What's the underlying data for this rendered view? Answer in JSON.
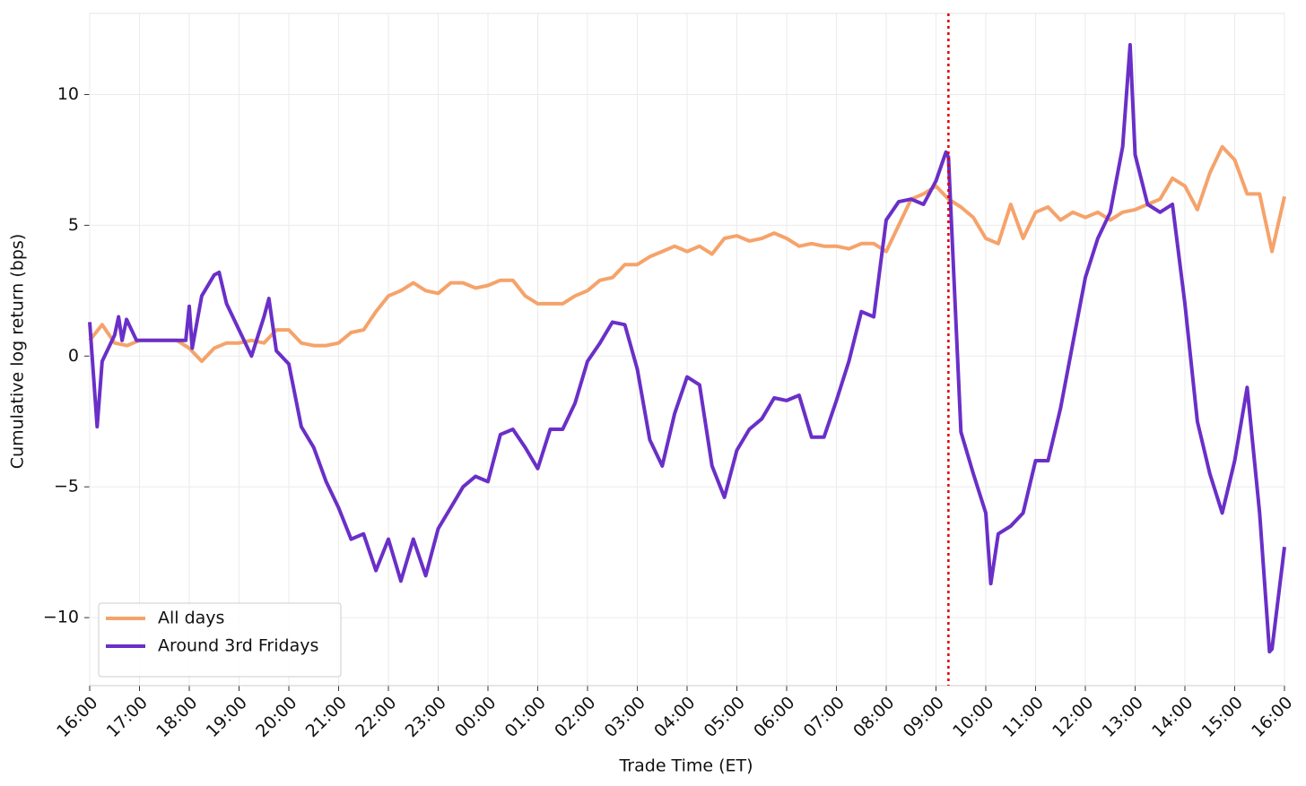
{
  "chart_data": {
    "type": "line",
    "xlabel": "Trade Time (ET)",
    "ylabel": "Cumulative log return (bps)",
    "xlim": [
      0,
      24
    ],
    "ylim": [
      -12.6,
      13.1
    ],
    "grid": true,
    "legend": "lower left",
    "vline": {
      "x": 17.25,
      "color": "#e00000"
    },
    "xticks": [
      {
        "value": 0,
        "label": "16:00"
      },
      {
        "value": 1,
        "label": "17:00"
      },
      {
        "value": 2,
        "label": "18:00"
      },
      {
        "value": 3,
        "label": "19:00"
      },
      {
        "value": 4,
        "label": "20:00"
      },
      {
        "value": 5,
        "label": "21:00"
      },
      {
        "value": 6,
        "label": "22:00"
      },
      {
        "value": 7,
        "label": "23:00"
      },
      {
        "value": 8,
        "label": "00:00"
      },
      {
        "value": 9,
        "label": "01:00"
      },
      {
        "value": 10,
        "label": "02:00"
      },
      {
        "value": 11,
        "label": "03:00"
      },
      {
        "value": 12,
        "label": "04:00"
      },
      {
        "value": 13,
        "label": "05:00"
      },
      {
        "value": 14,
        "label": "06:00"
      },
      {
        "value": 15,
        "label": "07:00"
      },
      {
        "value": 16,
        "label": "08:00"
      },
      {
        "value": 17,
        "label": "09:00"
      },
      {
        "value": 18,
        "label": "10:00"
      },
      {
        "value": 19,
        "label": "11:00"
      },
      {
        "value": 20,
        "label": "12:00"
      },
      {
        "value": 21,
        "label": "13:00"
      },
      {
        "value": 22,
        "label": "14:00"
      },
      {
        "value": 23,
        "label": "15:00"
      },
      {
        "value": 24,
        "label": "16:00"
      }
    ],
    "yticks": [
      {
        "value": -10,
        "label": "−10"
      },
      {
        "value": -5,
        "label": "−5"
      },
      0,
      5,
      10
    ],
    "series": [
      {
        "name": "All days",
        "color": "#f5a36b",
        "x": [
          0,
          0.25,
          0.5,
          0.75,
          1,
          1.25,
          1.5,
          1.75,
          2,
          2.25,
          2.5,
          2.75,
          3,
          3.25,
          3.5,
          3.75,
          4,
          4.25,
          4.5,
          4.75,
          5,
          5.25,
          5.5,
          5.75,
          6,
          6.25,
          6.5,
          6.75,
          7,
          7.25,
          7.5,
          7.75,
          8,
          8.25,
          8.5,
          8.75,
          9,
          9.25,
          9.5,
          9.75,
          10,
          10.25,
          10.5,
          10.75,
          11,
          11.25,
          11.5,
          11.75,
          12,
          12.25,
          12.5,
          12.75,
          13,
          13.25,
          13.5,
          13.75,
          14,
          14.25,
          14.5,
          14.75,
          15,
          15.25,
          15.5,
          15.75,
          16,
          16.25,
          16.5,
          16.75,
          17,
          17.25,
          17.5,
          17.75,
          18,
          18.25,
          18.5,
          18.75,
          19,
          19.25,
          19.5,
          19.75,
          20,
          20.25,
          20.5,
          20.75,
          21,
          21.25,
          21.5,
          21.75,
          22,
          22.25,
          22.5,
          22.75,
          23,
          23.25,
          23.5,
          23.75,
          24
        ],
        "values": [
          0.6,
          1.2,
          0.5,
          0.4,
          0.6,
          0.6,
          0.6,
          0.6,
          0.3,
          -0.2,
          0.3,
          0.5,
          0.5,
          0.6,
          0.5,
          1.0,
          1.0,
          0.5,
          0.4,
          0.4,
          0.5,
          0.9,
          1.0,
          1.7,
          2.3,
          2.5,
          2.8,
          2.5,
          2.4,
          2.8,
          2.8,
          2.6,
          2.7,
          2.9,
          2.9,
          2.3,
          2.0,
          2.0,
          2.0,
          2.3,
          2.5,
          2.9,
          3.0,
          3.5,
          3.5,
          3.8,
          4.0,
          4.2,
          4.0,
          4.2,
          3.9,
          4.5,
          4.6,
          4.4,
          4.5,
          4.7,
          4.5,
          4.2,
          4.3,
          4.2,
          4.2,
          4.1,
          4.3,
          4.3,
          4.0,
          5.0,
          6.0,
          6.2,
          6.5,
          6.0,
          5.7,
          5.3,
          4.5,
          4.3,
          5.8,
          4.5,
          5.5,
          5.7,
          5.2,
          5.5,
          5.3,
          5.5,
          5.2,
          5.5,
          5.6,
          5.8,
          6.0,
          6.8,
          6.5,
          5.6,
          7.0,
          8.0,
          7.5,
          6.2,
          6.2,
          4.0,
          6.1
        ]
      },
      {
        "name": "Around 3rd Fridays",
        "color": "#6a2fc8",
        "x": [
          0,
          0.15,
          0.25,
          0.5,
          0.58,
          0.65,
          0.74,
          0.94,
          1,
          1.25,
          1.5,
          1.75,
          1.93,
          2,
          2.06,
          2.25,
          2.5,
          2.6,
          2.75,
          3,
          3.25,
          3.5,
          3.6,
          3.75,
          4,
          4.25,
          4.5,
          4.75,
          5,
          5.25,
          5.5,
          5.75,
          6,
          6.25,
          6.5,
          6.75,
          7,
          7.25,
          7.5,
          7.75,
          8,
          8.25,
          8.5,
          8.75,
          9,
          9.25,
          9.5,
          9.75,
          10,
          10.25,
          10.5,
          10.75,
          11,
          11.25,
          11.5,
          11.75,
          12,
          12.25,
          12.5,
          12.75,
          13,
          13.25,
          13.5,
          13.75,
          14,
          14.25,
          14.5,
          14.75,
          15,
          15.25,
          15.5,
          15.75,
          16,
          16.25,
          16.5,
          16.75,
          17,
          17.2,
          17.25,
          17.5,
          17.75,
          18,
          18.1,
          18.25,
          18.5,
          18.75,
          19,
          19.25,
          19.5,
          19.75,
          20,
          20.25,
          20.5,
          20.75,
          20.9,
          21,
          21.25,
          21.5,
          21.75,
          22,
          22.25,
          22.5,
          22.75,
          23,
          23.25,
          23.5,
          23.7,
          23.75,
          24
        ],
        "values": [
          1.3,
          -2.7,
          -0.2,
          0.8,
          1.5,
          0.6,
          1.4,
          0.6,
          0.6,
          0.6,
          0.6,
          0.6,
          0.6,
          1.9,
          0.3,
          2.3,
          3.1,
          3.2,
          2.0,
          1.0,
          0.0,
          1.5,
          2.2,
          0.2,
          -0.3,
          -2.7,
          -3.5,
          -4.8,
          -5.8,
          -7.0,
          -6.8,
          -8.2,
          -7.0,
          -8.6,
          -7.0,
          -8.4,
          -6.6,
          -5.8,
          -5.0,
          -4.6,
          -4.8,
          -3.0,
          -2.8,
          -3.5,
          -4.3,
          -2.8,
          -2.8,
          -1.8,
          -0.2,
          0.5,
          1.3,
          1.2,
          -0.5,
          -3.2,
          -4.2,
          -2.2,
          -0.8,
          -1.1,
          -4.2,
          -5.4,
          -3.6,
          -2.8,
          -2.4,
          -1.6,
          -1.7,
          -1.5,
          -3.1,
          -3.1,
          -1.7,
          -0.2,
          1.7,
          1.5,
          5.2,
          5.9,
          6.0,
          5.8,
          6.7,
          7.8,
          7.6,
          -2.9,
          -4.5,
          -6.0,
          -8.7,
          -6.8,
          -6.5,
          -6.0,
          -4.0,
          -4.0,
          -2.0,
          0.5,
          3.0,
          4.5,
          5.5,
          8.0,
          11.9,
          7.7,
          5.8,
          5.5,
          5.8,
          2.0,
          -2.5,
          -4.5,
          -6.0,
          -4.0,
          -1.2,
          -6.0,
          -11.3,
          -11.2,
          -7.3
        ]
      }
    ]
  }
}
